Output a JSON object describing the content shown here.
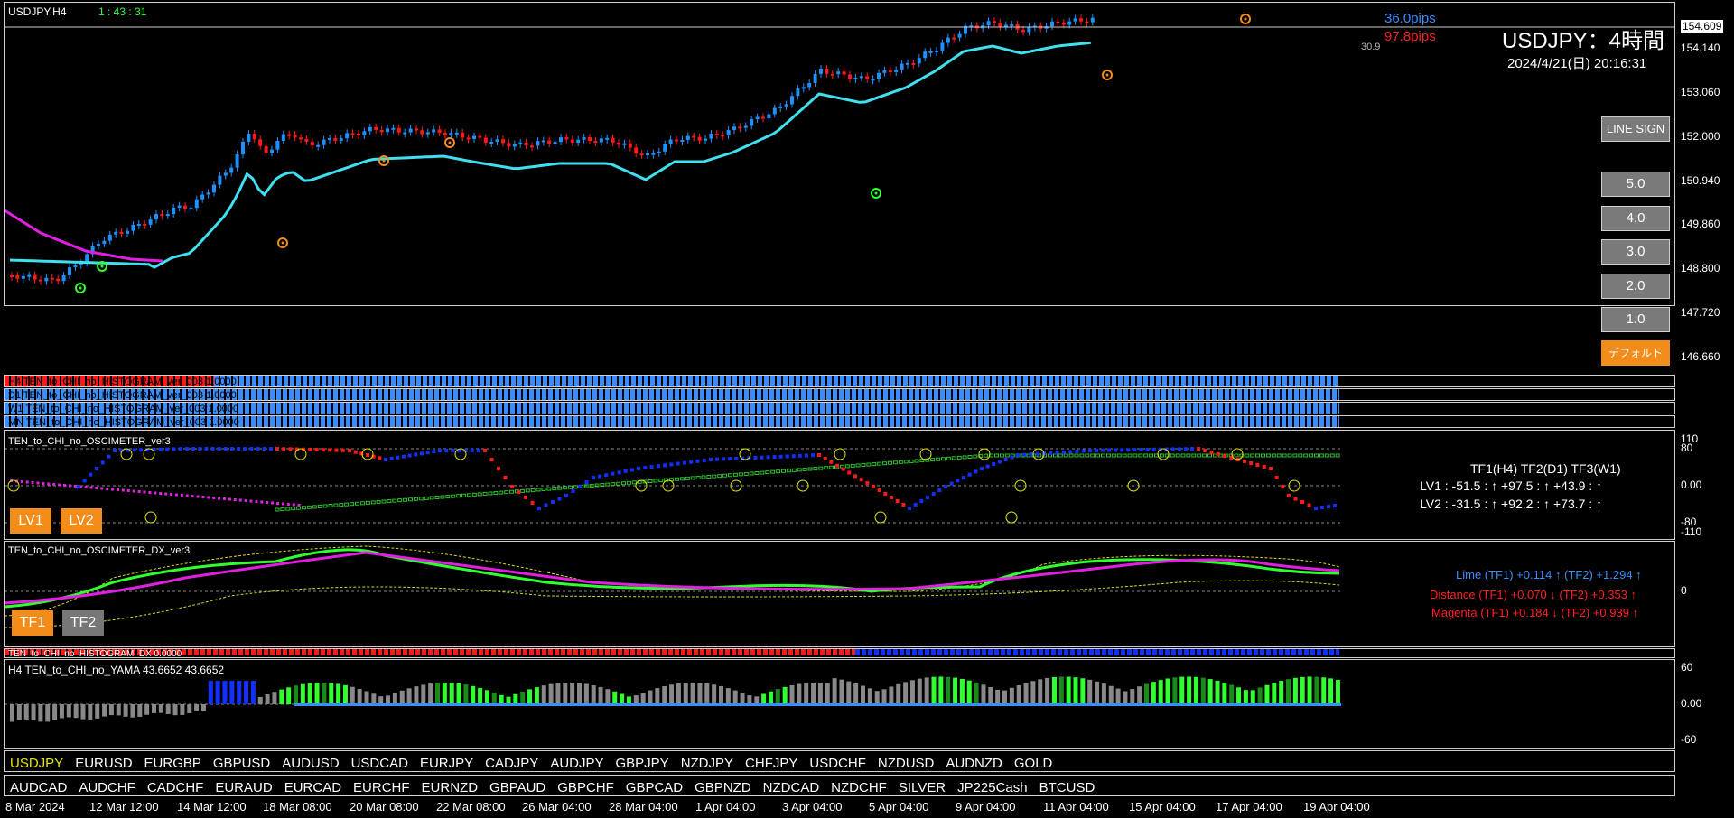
{
  "header": {
    "symbol_label": "USDJPY,H4",
    "timer": "1 : 43 : 31"
  },
  "info": {
    "pips_blue": "36.0pips",
    "pips_red": "97.8pips",
    "small_value": "30.9",
    "title": "USDJPY：4時間",
    "datetime": "2024/4/21(日) 20:16:31"
  },
  "price_axis": [
    "154.609",
    "154.140",
    "153.060",
    "152.000",
    "150.940",
    "149.860",
    "148.800",
    "147.720",
    "146.660"
  ],
  "buttons": {
    "line_sign": "LINE SIGN",
    "levels": [
      "5.0",
      "4.0",
      "3.0",
      "2.0",
      "1.0"
    ],
    "default": "デフォルト"
  },
  "histograms": [
    "H4 TEN_to_CHI_no_HISTOGRAM_ver_003 1.0000",
    "D1 TEN_to_CHI_no_HISTOGRAM_ver_003 1.0000",
    "W1 TEN_to_CHI_no_HISTOGRAM_ver_003 1.0000",
    "MN TEN_to_CHI_no_HISTOGRAM_ver_003 1.0000"
  ],
  "oscimeter": {
    "title": "TEN_to_CHI_no_OSCIMETER_ver3",
    "axis": [
      "110",
      "80",
      "0.00",
      "-80",
      "-110"
    ],
    "header": "TF1(H4)   TF2(D1)   TF3(W1)",
    "lv1": "LV1 :  -51.5 : ↑   +97.5 : ↑   +43.9 : ↑",
    "lv2": "LV2 :  -31.5 : ↑   +92.2 : ↑   +73.7 : ↑",
    "btn_lv1": "LV1",
    "btn_lv2": "LV2"
  },
  "dx": {
    "title": "TEN_to_CHI_no_OSCIMETER_DX_ver3",
    "axis": [
      "0"
    ],
    "lime": "Lime (TF1) +0.114 ↑  (TF2) +1.294 ↑",
    "distance": "Distance (TF1) +0.070 ↓  (TF2) +0.353 ↑",
    "magenta": "Magenta (TF1) +0.184 ↓  (TF2) +0.939 ↑",
    "btn_tf1": "TF1",
    "btn_tf2": "TF2"
  },
  "histogram_dx": {
    "title": "TEN_to_CHI_no_HISTOGRAM_DX 0.0000"
  },
  "yama": {
    "title": "H4  TEN_to_CHI_no_YAMA 43.6652  43.6652",
    "axis": [
      "60",
      "0.00",
      "-60"
    ]
  },
  "symbols_row1": [
    "USDJPY",
    "EURUSD",
    "EURGBP",
    "GBPUSD",
    "AUDUSD",
    "USDCAD",
    "EURJPY",
    "CADJPY",
    "AUDJPY",
    "GBPJPY",
    "NZDJPY",
    "CHFJPY",
    "USDCHF",
    "NZDUSD",
    "AUDNZD",
    "GOLD"
  ],
  "symbols_row2": [
    "AUDCAD",
    "AUDCHF",
    "CADCHF",
    "EURAUD",
    "EURCAD",
    "EURCHF",
    "EURNZD",
    "GBPAUD",
    "GBPCHF",
    "GBPCAD",
    "GBPNZD",
    "NZDCAD",
    "NZDCHF",
    "SILVER",
    "JP225Cash",
    "BTCUSD"
  ],
  "time_axis": [
    "8 Mar 2024",
    "12 Mar 12:00",
    "14 Mar 12:00",
    "18 Mar 08:00",
    "20 Mar 08:00",
    "22 Mar 08:00",
    "26 Mar 04:00",
    "28 Mar 04:00",
    "1 Apr 04:00",
    "3 Apr 04:00",
    "5 Apr 04:00",
    "9 Apr 04:00",
    "11 Apr 04:00",
    "15 Apr 04:00",
    "17 Apr 04:00",
    "19 Apr 04:00"
  ],
  "colors": {
    "bull": "#1e90ff",
    "bear": "#ff1a1a",
    "ma_cyan": "#40e0f0",
    "ma_magenta": "#e020e0",
    "lime": "#30ff30",
    "orange": "#f28c1a"
  }
}
